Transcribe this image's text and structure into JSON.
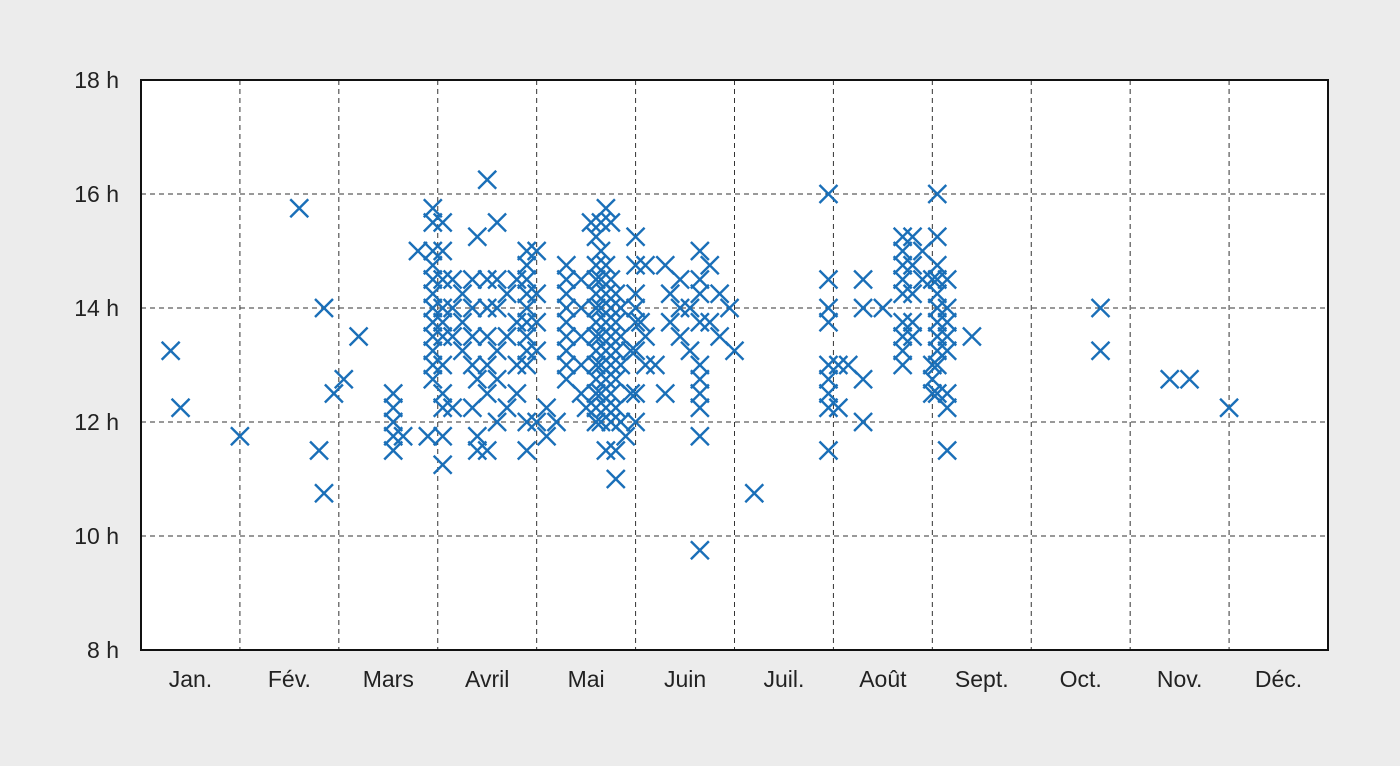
{
  "chart_data": {
    "type": "scatter",
    "title": "",
    "xlabel": "",
    "ylabel": "",
    "marker": "x",
    "color": "#1a6fb8",
    "grid": true,
    "background": "#ececec",
    "plot_background": "#ffffff",
    "x_categories": [
      "Jan.",
      "Fév.",
      "Mars",
      "Avril",
      "Mai",
      "Juin",
      "Juil.",
      "Août",
      "Sept.",
      "Oct.",
      "Nov.",
      "Déc."
    ],
    "xlim": [
      1,
      13
    ],
    "y_ticks": [
      "8 h",
      "10 h",
      "12 h",
      "14 h",
      "16 h",
      "18 h"
    ],
    "ylim": [
      8,
      18
    ],
    "points": [
      [
        1.3,
        13.25
      ],
      [
        1.4,
        12.25
      ],
      [
        2.0,
        11.75
      ],
      [
        2.6,
        15.75
      ],
      [
        2.8,
        11.5
      ],
      [
        2.85,
        14.0
      ],
      [
        2.85,
        10.75
      ],
      [
        2.95,
        12.5
      ],
      [
        3.05,
        12.75
      ],
      [
        3.2,
        13.5
      ],
      [
        3.55,
        12.5
      ],
      [
        3.55,
        12.25
      ],
      [
        3.55,
        12.0
      ],
      [
        3.55,
        11.75
      ],
      [
        3.55,
        11.5
      ],
      [
        3.65,
        11.75
      ],
      [
        3.8,
        15.0
      ],
      [
        3.9,
        11.75
      ],
      [
        3.95,
        15.75
      ],
      [
        3.95,
        15.5
      ],
      [
        3.95,
        15.0
      ],
      [
        3.95,
        14.75
      ],
      [
        3.95,
        14.5
      ],
      [
        3.95,
        14.25
      ],
      [
        3.95,
        14.0
      ],
      [
        3.95,
        13.75
      ],
      [
        3.95,
        13.5
      ],
      [
        3.95,
        13.25
      ],
      [
        3.95,
        13.0
      ],
      [
        3.95,
        12.75
      ],
      [
        4.05,
        15.5
      ],
      [
        4.05,
        15.0
      ],
      [
        4.05,
        14.5
      ],
      [
        4.05,
        14.0
      ],
      [
        4.05,
        13.75
      ],
      [
        4.05,
        13.5
      ],
      [
        4.05,
        13.0
      ],
      [
        4.05,
        12.5
      ],
      [
        4.05,
        12.25
      ],
      [
        4.05,
        11.75
      ],
      [
        4.05,
        11.25
      ],
      [
        4.15,
        14.5
      ],
      [
        4.15,
        14.0
      ],
      [
        4.15,
        13.5
      ],
      [
        4.15,
        12.25
      ],
      [
        4.25,
        14.25
      ],
      [
        4.25,
        13.75
      ],
      [
        4.25,
        13.25
      ],
      [
        4.35,
        14.5
      ],
      [
        4.35,
        14.0
      ],
      [
        4.35,
        13.5
      ],
      [
        4.35,
        13.0
      ],
      [
        4.35,
        12.25
      ],
      [
        4.4,
        15.25
      ],
      [
        4.4,
        12.75
      ],
      [
        4.4,
        11.75
      ],
      [
        4.4,
        11.5
      ],
      [
        4.5,
        16.25
      ],
      [
        4.5,
        14.5
      ],
      [
        4.5,
        14.0
      ],
      [
        4.5,
        13.5
      ],
      [
        4.5,
        13.0
      ],
      [
        4.5,
        12.5
      ],
      [
        4.5,
        11.5
      ],
      [
        4.6,
        15.5
      ],
      [
        4.6,
        14.5
      ],
      [
        4.6,
        14.0
      ],
      [
        4.6,
        13.25
      ],
      [
        4.6,
        12.75
      ],
      [
        4.6,
        12.0
      ],
      [
        4.7,
        14.25
      ],
      [
        4.7,
        13.5
      ],
      [
        4.7,
        12.25
      ],
      [
        4.8,
        14.5
      ],
      [
        4.8,
        13.75
      ],
      [
        4.8,
        13.0
      ],
      [
        4.8,
        12.5
      ],
      [
        4.9,
        15.0
      ],
      [
        4.9,
        14.75
      ],
      [
        4.9,
        14.5
      ],
      [
        4.9,
        14.25
      ],
      [
        4.9,
        14.0
      ],
      [
        4.9,
        13.75
      ],
      [
        4.9,
        13.5
      ],
      [
        4.9,
        13.25
      ],
      [
        4.9,
        13.0
      ],
      [
        4.9,
        12.0
      ],
      [
        4.9,
        11.5
      ],
      [
        5.0,
        15.0
      ],
      [
        5.0,
        14.25
      ],
      [
        5.0,
        13.75
      ],
      [
        5.0,
        13.25
      ],
      [
        5.0,
        12.0
      ],
      [
        5.1,
        12.25
      ],
      [
        5.1,
        11.75
      ],
      [
        5.2,
        12.0
      ],
      [
        5.3,
        14.75
      ],
      [
        5.3,
        14.5
      ],
      [
        5.3,
        14.25
      ],
      [
        5.3,
        14.0
      ],
      [
        5.3,
        13.75
      ],
      [
        5.3,
        13.5
      ],
      [
        5.3,
        13.25
      ],
      [
        5.3,
        13.0
      ],
      [
        5.3,
        12.75
      ],
      [
        5.45,
        14.5
      ],
      [
        5.45,
        14.0
      ],
      [
        5.45,
        13.5
      ],
      [
        5.45,
        13.0
      ],
      [
        5.45,
        12.5
      ],
      [
        5.5,
        12.25
      ],
      [
        5.55,
        15.5
      ],
      [
        5.6,
        15.25
      ],
      [
        5.6,
        14.75
      ],
      [
        5.6,
        14.5
      ],
      [
        5.6,
        14.25
      ],
      [
        5.6,
        14.0
      ],
      [
        5.6,
        13.75
      ],
      [
        5.6,
        13.5
      ],
      [
        5.6,
        13.25
      ],
      [
        5.6,
        13.0
      ],
      [
        5.6,
        12.75
      ],
      [
        5.6,
        12.5
      ],
      [
        5.6,
        12.25
      ],
      [
        5.6,
        12.0
      ],
      [
        5.65,
        15.5
      ],
      [
        5.65,
        15.0
      ],
      [
        5.65,
        14.5
      ],
      [
        5.65,
        14.0
      ],
      [
        5.65,
        13.5
      ],
      [
        5.65,
        13.0
      ],
      [
        5.65,
        12.5
      ],
      [
        5.65,
        12.0
      ],
      [
        5.7,
        15.75
      ],
      [
        5.7,
        14.75
      ],
      [
        5.7,
        14.25
      ],
      [
        5.7,
        13.75
      ],
      [
        5.7,
        13.25
      ],
      [
        5.7,
        12.75
      ],
      [
        5.7,
        12.25
      ],
      [
        5.7,
        11.5
      ],
      [
        5.75,
        15.5
      ],
      [
        5.75,
        14.5
      ],
      [
        5.75,
        14.0
      ],
      [
        5.75,
        13.5
      ],
      [
        5.75,
        13.0
      ],
      [
        5.75,
        12.5
      ],
      [
        5.75,
        12.0
      ],
      [
        5.8,
        14.25
      ],
      [
        5.8,
        13.75
      ],
      [
        5.8,
        13.25
      ],
      [
        5.8,
        12.75
      ],
      [
        5.8,
        12.25
      ],
      [
        5.8,
        11.5
      ],
      [
        5.8,
        11.0
      ],
      [
        5.85,
        14.0
      ],
      [
        5.85,
        13.5
      ],
      [
        5.85,
        13.0
      ],
      [
        5.85,
        12.0
      ],
      [
        5.9,
        11.75
      ],
      [
        5.95,
        13.25
      ],
      [
        5.95,
        12.5
      ],
      [
        6.0,
        15.25
      ],
      [
        6.0,
        14.75
      ],
      [
        6.0,
        13.25
      ],
      [
        6.0,
        12.5
      ],
      [
        6.0,
        12.0
      ],
      [
        6.05,
        13.75
      ],
      [
        6.1,
        14.75
      ],
      [
        6.1,
        13.5
      ],
      [
        6.1,
        13.0
      ],
      [
        6.2,
        13.0
      ],
      [
        6.0,
        14.25
      ],
      [
        6.0,
        14.0
      ],
      [
        6.0,
        13.75
      ],
      [
        6.3,
        14.75
      ],
      [
        6.3,
        12.5
      ],
      [
        6.35,
        14.25
      ],
      [
        6.35,
        13.75
      ],
      [
        6.45,
        14.5
      ],
      [
        6.45,
        14.0
      ],
      [
        6.45,
        13.5
      ],
      [
        6.55,
        14.0
      ],
      [
        6.55,
        13.25
      ],
      [
        6.65,
        15.0
      ],
      [
        6.65,
        14.5
      ],
      [
        6.65,
        14.25
      ],
      [
        6.65,
        13.75
      ],
      [
        6.65,
        13.0
      ],
      [
        6.65,
        12.75
      ],
      [
        6.65,
        12.5
      ],
      [
        6.65,
        12.25
      ],
      [
        6.65,
        11.75
      ],
      [
        6.65,
        9.75
      ],
      [
        6.75,
        14.75
      ],
      [
        6.75,
        13.75
      ],
      [
        6.85,
        14.25
      ],
      [
        6.85,
        13.5
      ],
      [
        6.95,
        14.0
      ],
      [
        7.0,
        13.25
      ],
      [
        7.2,
        10.75
      ],
      [
        7.95,
        16.0
      ],
      [
        7.95,
        14.5
      ],
      [
        7.95,
        14.0
      ],
      [
        7.95,
        13.75
      ],
      [
        7.95,
        13.0
      ],
      [
        7.95,
        12.75
      ],
      [
        7.95,
        12.5
      ],
      [
        7.95,
        12.25
      ],
      [
        7.95,
        11.5
      ],
      [
        8.05,
        13.0
      ],
      [
        8.05,
        12.25
      ],
      [
        8.15,
        13.0
      ],
      [
        8.3,
        14.5
      ],
      [
        8.3,
        14.0
      ],
      [
        8.3,
        12.75
      ],
      [
        8.3,
        12.0
      ],
      [
        8.5,
        14.0
      ],
      [
        8.7,
        15.25
      ],
      [
        8.7,
        15.0
      ],
      [
        8.7,
        14.75
      ],
      [
        8.7,
        14.5
      ],
      [
        8.7,
        14.25
      ],
      [
        8.7,
        13.75
      ],
      [
        8.7,
        13.5
      ],
      [
        8.7,
        13.25
      ],
      [
        8.7,
        13.0
      ],
      [
        8.8,
        15.25
      ],
      [
        8.8,
        14.75
      ],
      [
        8.8,
        14.25
      ],
      [
        8.8,
        13.75
      ],
      [
        8.8,
        13.5
      ],
      [
        8.9,
        15.0
      ],
      [
        8.9,
        14.5
      ],
      [
        9.0,
        14.5
      ],
      [
        9.0,
        13.0
      ],
      [
        9.0,
        12.75
      ],
      [
        9.0,
        12.5
      ],
      [
        9.05,
        16.0
      ],
      [
        9.05,
        15.25
      ],
      [
        9.05,
        14.75
      ],
      [
        9.05,
        14.5
      ],
      [
        9.05,
        14.25
      ],
      [
        9.05,
        14.0
      ],
      [
        9.05,
        13.75
      ],
      [
        9.05,
        13.5
      ],
      [
        9.05,
        13.25
      ],
      [
        9.05,
        13.0
      ],
      [
        9.05,
        12.5
      ],
      [
        9.15,
        14.5
      ],
      [
        9.15,
        14.0
      ],
      [
        9.15,
        13.75
      ],
      [
        9.15,
        13.5
      ],
      [
        9.15,
        13.25
      ],
      [
        9.15,
        12.5
      ],
      [
        9.15,
        12.25
      ],
      [
        9.15,
        11.5
      ],
      [
        9.4,
        13.5
      ],
      [
        10.7,
        14.0
      ],
      [
        10.7,
        13.25
      ],
      [
        11.4,
        12.75
      ],
      [
        11.6,
        12.75
      ],
      [
        12.0,
        12.25
      ]
    ]
  }
}
